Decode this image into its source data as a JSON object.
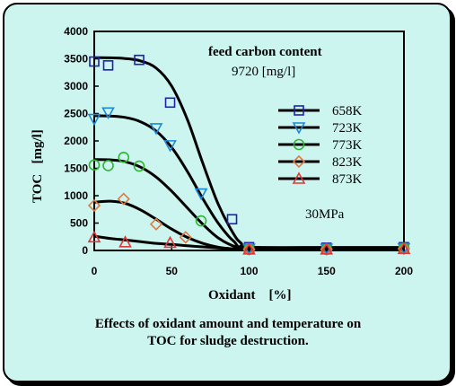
{
  "caption": {
    "line1": "Effects of oxidant amount and temperature on",
    "line2": "TOC for sludge destruction."
  },
  "chart_data": {
    "type": "scatter",
    "xlabel": "Oxidant    [%]",
    "ylabel": "TOC   [mg/l]",
    "xlim": [
      0,
      200
    ],
    "ylim": [
      0,
      4000
    ],
    "xticks": [
      "0",
      "50",
      "100",
      "150",
      "200"
    ],
    "yticks": [
      "0",
      "500",
      "1000",
      "1500",
      "2000",
      "2500",
      "3000",
      "3500",
      "4000"
    ],
    "grid": false,
    "legend_position": "right",
    "annotations": {
      "feed_title": "feed carbon content",
      "feed_value": "9720 [mg/l]",
      "pressure": "30MPa"
    },
    "series": [
      {
        "name": "658K",
        "marker": "square",
        "color": "#1f1fb4",
        "points": [
          [
            0,
            3450
          ],
          [
            9,
            3380
          ],
          [
            29,
            3480
          ],
          [
            49,
            2700
          ],
          [
            89,
            570
          ],
          [
            100,
            60
          ],
          [
            150,
            50
          ],
          [
            200,
            60
          ]
        ],
        "curve": [
          [
            0,
            3520
          ],
          [
            10,
            3518
          ],
          [
            20,
            3505
          ],
          [
            30,
            3460
          ],
          [
            40,
            3330
          ],
          [
            50,
            3000
          ],
          [
            60,
            2400
          ],
          [
            70,
            1600
          ],
          [
            80,
            850
          ],
          [
            90,
            300
          ],
          [
            95,
            130
          ],
          [
            100,
            60
          ],
          [
            150,
            55
          ],
          [
            200,
            55
          ]
        ]
      },
      {
        "name": "723K",
        "marker": "triangle-down",
        "color": "#1a8ad6",
        "points": [
          [
            0,
            2400
          ],
          [
            9,
            2520
          ],
          [
            40,
            2230
          ],
          [
            49,
            1920
          ],
          [
            69,
            1040
          ],
          [
            100,
            30
          ],
          [
            150,
            30
          ],
          [
            200,
            40
          ]
        ],
        "curve": [
          [
            0,
            2460
          ],
          [
            10,
            2455
          ],
          [
            20,
            2430
          ],
          [
            30,
            2350
          ],
          [
            40,
            2180
          ],
          [
            50,
            1880
          ],
          [
            60,
            1450
          ],
          [
            70,
            950
          ],
          [
            80,
            500
          ],
          [
            90,
            170
          ],
          [
            100,
            35
          ],
          [
            150,
            35
          ],
          [
            200,
            40
          ]
        ]
      },
      {
        "name": "773K",
        "marker": "circle",
        "color": "#2fb52f",
        "points": [
          [
            0,
            1560
          ],
          [
            9,
            1550
          ],
          [
            19,
            1700
          ],
          [
            29,
            1540
          ],
          [
            69,
            540
          ],
          [
            100,
            20
          ],
          [
            150,
            20
          ],
          [
            200,
            40
          ]
        ],
        "curve": [
          [
            0,
            1660
          ],
          [
            10,
            1655
          ],
          [
            20,
            1620
          ],
          [
            30,
            1520
          ],
          [
            40,
            1340
          ],
          [
            50,
            1080
          ],
          [
            60,
            780
          ],
          [
            70,
            480
          ],
          [
            80,
            230
          ],
          [
            90,
            80
          ],
          [
            100,
            25
          ],
          [
            150,
            25
          ],
          [
            200,
            30
          ]
        ]
      },
      {
        "name": "823K",
        "marker": "diamond",
        "color": "#e07a40",
        "points": [
          [
            0,
            820
          ],
          [
            19,
            940
          ],
          [
            40,
            480
          ],
          [
            59,
            240
          ],
          [
            100,
            20
          ],
          [
            150,
            20
          ],
          [
            200,
            30
          ]
        ],
        "curve": [
          [
            0,
            880
          ],
          [
            10,
            900
          ],
          [
            20,
            860
          ],
          [
            30,
            740
          ],
          [
            40,
            570
          ],
          [
            50,
            390
          ],
          [
            60,
            240
          ],
          [
            70,
            130
          ],
          [
            80,
            60
          ],
          [
            90,
            30
          ],
          [
            100,
            20
          ],
          [
            150,
            20
          ],
          [
            200,
            25
          ]
        ]
      },
      {
        "name": "873K",
        "marker": "triangle-up",
        "color": "#e03838",
        "points": [
          [
            0,
            240
          ],
          [
            20,
            150
          ],
          [
            49,
            140
          ],
          [
            100,
            20
          ],
          [
            150,
            20
          ],
          [
            200,
            30
          ]
        ],
        "curve": [
          [
            0,
            260
          ],
          [
            10,
            220
          ],
          [
            20,
            190
          ],
          [
            30,
            160
          ],
          [
            40,
            130
          ],
          [
            50,
            110
          ],
          [
            60,
            85
          ],
          [
            70,
            65
          ],
          [
            80,
            45
          ],
          [
            90,
            30
          ],
          [
            100,
            20
          ],
          [
            150,
            20
          ],
          [
            200,
            20
          ]
        ]
      }
    ]
  }
}
